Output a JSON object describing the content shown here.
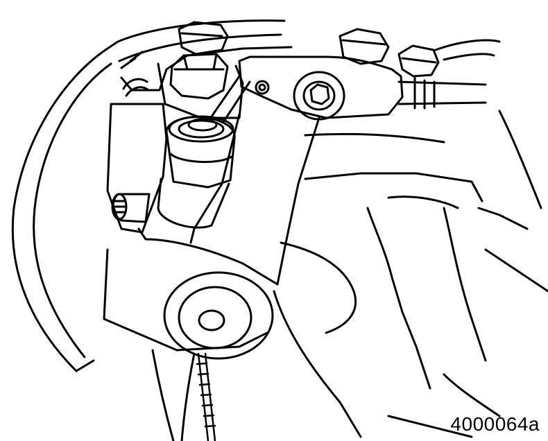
{
  "figure": {
    "id_label": "4000064a"
  },
  "colors": {
    "ink": "#000000",
    "paper": "#ffffff"
  }
}
